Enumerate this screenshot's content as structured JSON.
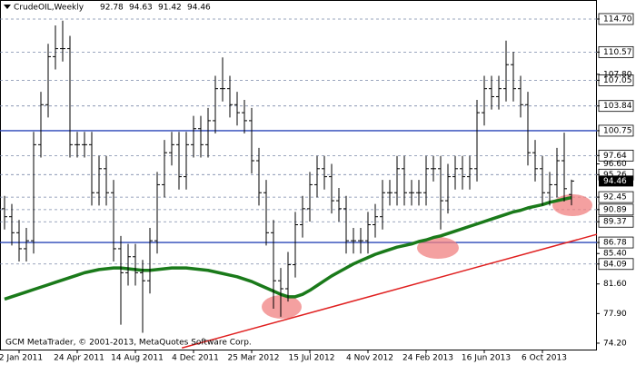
{
  "chart_data": {
    "type": "ohlc",
    "title": "CrudeOIL,Weekly",
    "header_values": [
      92.78,
      94.63,
      91.42,
      94.46
    ],
    "footer": "GCM MetaTrader, © 2001-2013, MetaQuotes Software Corp.",
    "categories": [
      null,
      null,
      "2 Jan 2011",
      null,
      null,
      null,
      null,
      null,
      null,
      null,
      "24 Apr 2011",
      null,
      null,
      null,
      null,
      null,
      null,
      null,
      "14 Aug 2011",
      null,
      null,
      null,
      null,
      null,
      null,
      null,
      "4 Dec 2011",
      null,
      null,
      null,
      null,
      null,
      null,
      null,
      "25 Mar 2012",
      null,
      null,
      null,
      null,
      null,
      null,
      null,
      "15 Jul 2012",
      null,
      null,
      null,
      null,
      null,
      null,
      null,
      "4 Nov 2012",
      null,
      null,
      null,
      null,
      null,
      null,
      null,
      "24 Feb 2013",
      null,
      null,
      null,
      null,
      null,
      null,
      null,
      "16 Jun 2013",
      null,
      null,
      null,
      null,
      null,
      null,
      null,
      "6 Oct 2013",
      null,
      null,
      null,
      null
    ],
    "open": [
      91,
      90,
      88,
      86,
      87,
      99,
      104,
      110,
      111,
      111,
      99,
      99,
      99,
      93,
      96,
      93,
      86,
      83,
      85,
      83,
      82,
      87,
      94,
      98,
      99,
      95,
      99,
      101,
      99,
      102,
      106,
      106,
      104,
      103,
      102,
      97,
      93,
      88,
      82,
      81,
      84,
      89,
      91,
      94,
      96,
      95,
      92,
      91,
      87,
      87,
      87,
      89,
      90,
      93,
      93,
      96,
      93,
      93,
      93,
      96,
      96,
      92,
      95,
      96,
      95,
      96,
      103,
      106,
      105,
      106,
      109,
      106,
      104,
      98,
      96,
      93,
      94,
      97,
      92.78
    ],
    "high": [
      92.6,
      91.6,
      89.6,
      88.6,
      100.6,
      105.6,
      111.6,
      113.9,
      114.5,
      112.6,
      100.6,
      100.6,
      100.6,
      97.6,
      97.6,
      94.6,
      87.6,
      86.6,
      86.6,
      84.6,
      88.6,
      95.6,
      99.6,
      100.6,
      100.6,
      100.6,
      102.6,
      102.6,
      103.6,
      107.6,
      109.9,
      107.6,
      105.6,
      104.6,
      103.6,
      98.6,
      94.6,
      89.6,
      83.6,
      85.6,
      90.6,
      92.6,
      95.6,
      97.6,
      97.6,
      96.6,
      93.6,
      92.6,
      88.6,
      88.6,
      90.6,
      91.6,
      94.6,
      94.6,
      97.6,
      97.6,
      94.6,
      94.6,
      97.6,
      97.6,
      97.6,
      96.6,
      97.6,
      97.6,
      97.6,
      104.6,
      107.6,
      107.6,
      107.6,
      112,
      110.6,
      107.6,
      105.6,
      99.6,
      97.6,
      95.6,
      98.6,
      100.5,
      94.63
    ],
    "low": [
      88.4,
      86.4,
      84.4,
      84.4,
      85.4,
      97.4,
      102.4,
      108.4,
      109.4,
      97.4,
      97.4,
      97.4,
      91.4,
      91.4,
      91.4,
      84.4,
      76.5,
      81.4,
      81.4,
      75.5,
      80.4,
      85.4,
      92.4,
      96.4,
      93.4,
      93.4,
      97.4,
      97.4,
      97.4,
      100.4,
      104.4,
      102.4,
      101.4,
      100.4,
      95.4,
      91.4,
      86.4,
      78.5,
      77.5,
      79.4,
      82.4,
      87.4,
      89.4,
      92.4,
      93.4,
      90.4,
      89.4,
      85.4,
      85.4,
      85.4,
      85.4,
      87.4,
      88.4,
      91.4,
      91.4,
      91.4,
      91.4,
      91.4,
      91.4,
      94.4,
      88.4,
      90.4,
      93.4,
      93.4,
      93.4,
      94.4,
      101.4,
      103.4,
      103.4,
      104.4,
      104.4,
      102.4,
      96.4,
      94.4,
      91.4,
      91.4,
      92.4,
      91.9,
      91.42
    ],
    "close": [
      90,
      88,
      86,
      87,
      99,
      104,
      110,
      111,
      111,
      99,
      99,
      99,
      93,
      96,
      93,
      86,
      83,
      85,
      83,
      82,
      87,
      94,
      98,
      99,
      95,
      99,
      101,
      99,
      102,
      106,
      106,
      104,
      103,
      102,
      97,
      93,
      88,
      82,
      81,
      84,
      89,
      91,
      94,
      96,
      95,
      92,
      91,
      87,
      87,
      87,
      89,
      90,
      93,
      93,
      96,
      93,
      93,
      93,
      96,
      96,
      92,
      95,
      96,
      95,
      96,
      103,
      106,
      105,
      106,
      109,
      106,
      104,
      98,
      96,
      93,
      94,
      97,
      93.5,
      94.46
    ],
    "bar_color": "#000000",
    "moving_average": {
      "color": "#1a7a1a",
      "values": [
        79.7,
        80,
        80.3,
        80.6,
        80.9,
        81.2,
        81.5,
        81.8,
        82.1,
        82.4,
        82.7,
        83,
        83.2,
        83.4,
        83.5,
        83.6,
        83.6,
        83.5,
        83.4,
        83.3,
        83.3,
        83.4,
        83.5,
        83.6,
        83.6,
        83.6,
        83.5,
        83.4,
        83.3,
        83.1,
        82.9,
        82.7,
        82.5,
        82.2,
        81.9,
        81.5,
        81.1,
        80.7,
        80.3,
        80,
        80,
        80.3,
        80.8,
        81.4,
        82,
        82.6,
        83.1,
        83.6,
        84.1,
        84.5,
        84.9,
        85.3,
        85.6,
        85.9,
        86.2,
        86.4,
        86.6,
        86.9,
        87.1,
        87.4,
        87.6,
        87.9,
        88.2,
        88.5,
        88.8,
        89.1,
        89.4,
        89.7,
        90,
        90.3,
        90.6,
        90.8,
        91.1,
        91.3,
        91.5,
        91.8,
        92,
        92.2,
        92.4
      ]
    },
    "trendline": {
      "color": "#e02020",
      "x": [
        24.4,
        81.5
      ],
      "values": [
        73.6,
        87.8
      ]
    },
    "hlines": {
      "color": "#2a46b8",
      "values": [
        100.75,
        86.78
      ]
    },
    "ylim": [
      73.4,
      117.08
    ],
    "level_ticks": [
      {
        "value": 114.7,
        "label": "114.70"
      },
      110.57,
      {
        "value": 107.05,
        "label": "107.05"
      },
      103.84,
      100.75,
      97.64,
      95.26,
      92.45,
      90.89,
      89.37,
      86.78,
      84.09
    ],
    "yticks": [
      {
        "value": 107.8,
        "label": "107.80"
      },
      {
        "value": 96.6,
        "label": "96.60"
      },
      {
        "value": 85.4,
        "label": "85.40"
      },
      {
        "value": 81.6,
        "label": "81.60"
      },
      {
        "value": 77.9,
        "label": "77.90"
      },
      {
        "value": 74.2,
        "label": "74.20"
      }
    ],
    "current_price": 94.46,
    "grid": true
  }
}
